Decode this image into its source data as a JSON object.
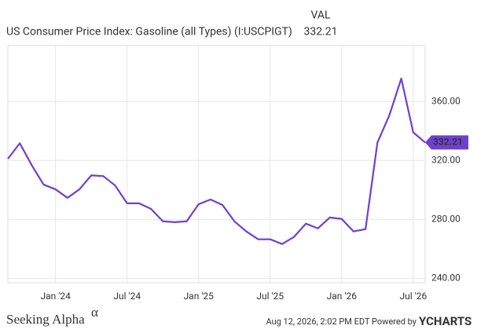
{
  "chart_data": {
    "type": "line",
    "title": "US Consumer Price Index: Gasoline (all Types) (I:USCPIGT)",
    "legend_header": "VAL",
    "x": [
      "2023-09",
      "2023-10",
      "2023-11",
      "2023-12",
      "2024-01",
      "2024-02",
      "2024-03",
      "2024-04",
      "2024-05",
      "2024-06",
      "2024-07",
      "2024-08",
      "2024-09",
      "2024-10",
      "2024-11",
      "2024-12",
      "2025-01",
      "2025-02",
      "2025-03",
      "2025-04",
      "2025-05",
      "2025-06",
      "2025-07",
      "2025-08",
      "2025-09",
      "2025-10",
      "2025-11",
      "2025-12",
      "2026-01",
      "2026-02",
      "2026-03",
      "2026-04",
      "2026-05",
      "2026-06",
      "2026-07",
      "2026-08"
    ],
    "series": [
      {
        "name": "US Consumer Price Index: Gasoline (all Types) (I:USCPIGT)",
        "color": "#6f3fd1",
        "values": [
          321.1,
          331.7,
          316.8,
          303.6,
          300.4,
          294.6,
          300.4,
          309.9,
          309.4,
          303.0,
          290.9,
          290.9,
          287.2,
          278.7,
          278.1,
          278.7,
          290.3,
          293.5,
          289.8,
          278.7,
          271.8,
          266.5,
          266.5,
          263.3,
          268.1,
          277.1,
          273.9,
          281.3,
          280.3,
          271.8,
          273.4,
          332.2,
          350.7,
          375.6,
          339.1,
          332.21
        ]
      }
    ],
    "xlim": [
      "2023-09",
      "2026-08"
    ],
    "xticks": [
      {
        "value": "2024-01",
        "label": "Jan '24"
      },
      {
        "value": "2024-07",
        "label": "Jul '24"
      },
      {
        "value": "2025-01",
        "label": "Jan '25"
      },
      {
        "value": "2025-07",
        "label": "Jul '25"
      },
      {
        "value": "2026-01",
        "label": "Jan '26"
      },
      {
        "value": "2026-07",
        "label": "Jul '26"
      }
    ],
    "ylim": [
      237,
      398
    ],
    "yticks": [
      {
        "value": 240,
        "label": "240.00"
      },
      {
        "value": 280,
        "label": "280.00"
      },
      {
        "value": 320,
        "label": "320.00"
      },
      {
        "value": 360,
        "label": "360.00"
      }
    ],
    "grid": true
  },
  "footer": {
    "brand": "Seeking Alpha",
    "brand_mark": "α",
    "timestamp": "Aug 12, 2026, 2:02 PM EDT Powered by",
    "provider": "YCHARTS"
  }
}
